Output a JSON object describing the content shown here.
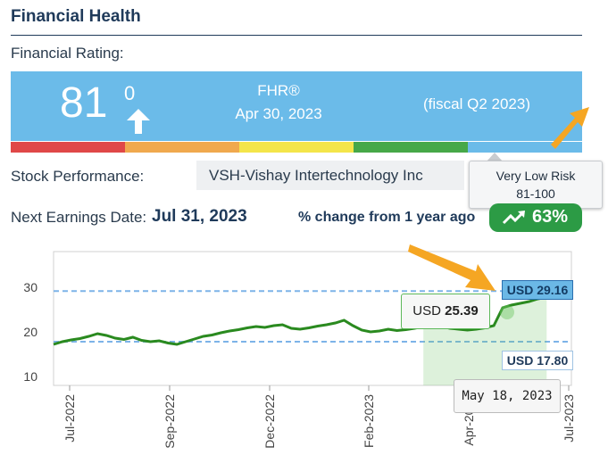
{
  "header": {
    "title": "Financial Health"
  },
  "rating": {
    "label": "Financial Rating:",
    "score": "81",
    "change": "0",
    "fhr_label": "FHR®",
    "fhr_date": "Apr 30, 2023",
    "fiscal": "(fiscal Q2 2023)",
    "scale_colors": [
      "#e04848",
      "#f0a94e",
      "#f4e54a",
      "#46a848",
      "#6bbbe9"
    ],
    "risk_tooltip": {
      "title": "Very Low Risk",
      "range": "81-100"
    }
  },
  "performance": {
    "label": "Stock Performance:",
    "selected_stock": "VSH-Vishay Intertechnology Inc"
  },
  "earnings": {
    "label": "Next Earnings Date:",
    "date": "Jul 31, 2023"
  },
  "change": {
    "label": "% change from 1 year ago",
    "value": "63%"
  },
  "annotation_color": "#f5a623",
  "chart_data": {
    "type": "line",
    "yticks": [
      "30",
      "20",
      "10"
    ],
    "xticks": [
      "Jul-2022",
      "Sep-2022",
      "Dec-2022",
      "Feb-2023",
      "Apr-2023",
      "Jul-2023"
    ],
    "ylim": [
      8,
      38
    ],
    "series": [
      {
        "color": "#2a8a1f",
        "values": [
          17.2,
          17.8,
          18.2,
          18.5,
          19.0,
          19.6,
          19.2,
          18.6,
          18.3,
          18.8,
          18.1,
          17.8,
          18.0,
          17.5,
          17.2,
          17.8,
          18.4,
          19.0,
          19.3,
          19.8,
          20.2,
          20.5,
          20.9,
          21.2,
          21.0,
          21.4,
          21.6,
          20.8,
          20.6,
          20.9,
          21.3,
          21.6,
          22.0,
          22.6,
          21.4,
          20.4,
          20.0,
          20.2,
          20.6,
          20.3,
          20.5,
          20.8,
          21.2,
          21.5,
          21.3,
          20.8,
          20.6,
          20.4,
          20.6,
          20.9,
          21.4,
          25.4,
          26.0,
          26.4,
          26.8,
          27.4,
          27.8,
          28.4,
          29.16
        ]
      }
    ],
    "reference_lines": [
      {
        "label": "USD 29.16",
        "value": 29.16,
        "color": "#7db3e8"
      },
      {
        "label": "USD 17.80",
        "value": 17.8,
        "color": "#7db3e8"
      }
    ],
    "tooltip_price": {
      "currency": "USD",
      "value": "25.39"
    },
    "tooltip_date": "May 18, 2023"
  }
}
